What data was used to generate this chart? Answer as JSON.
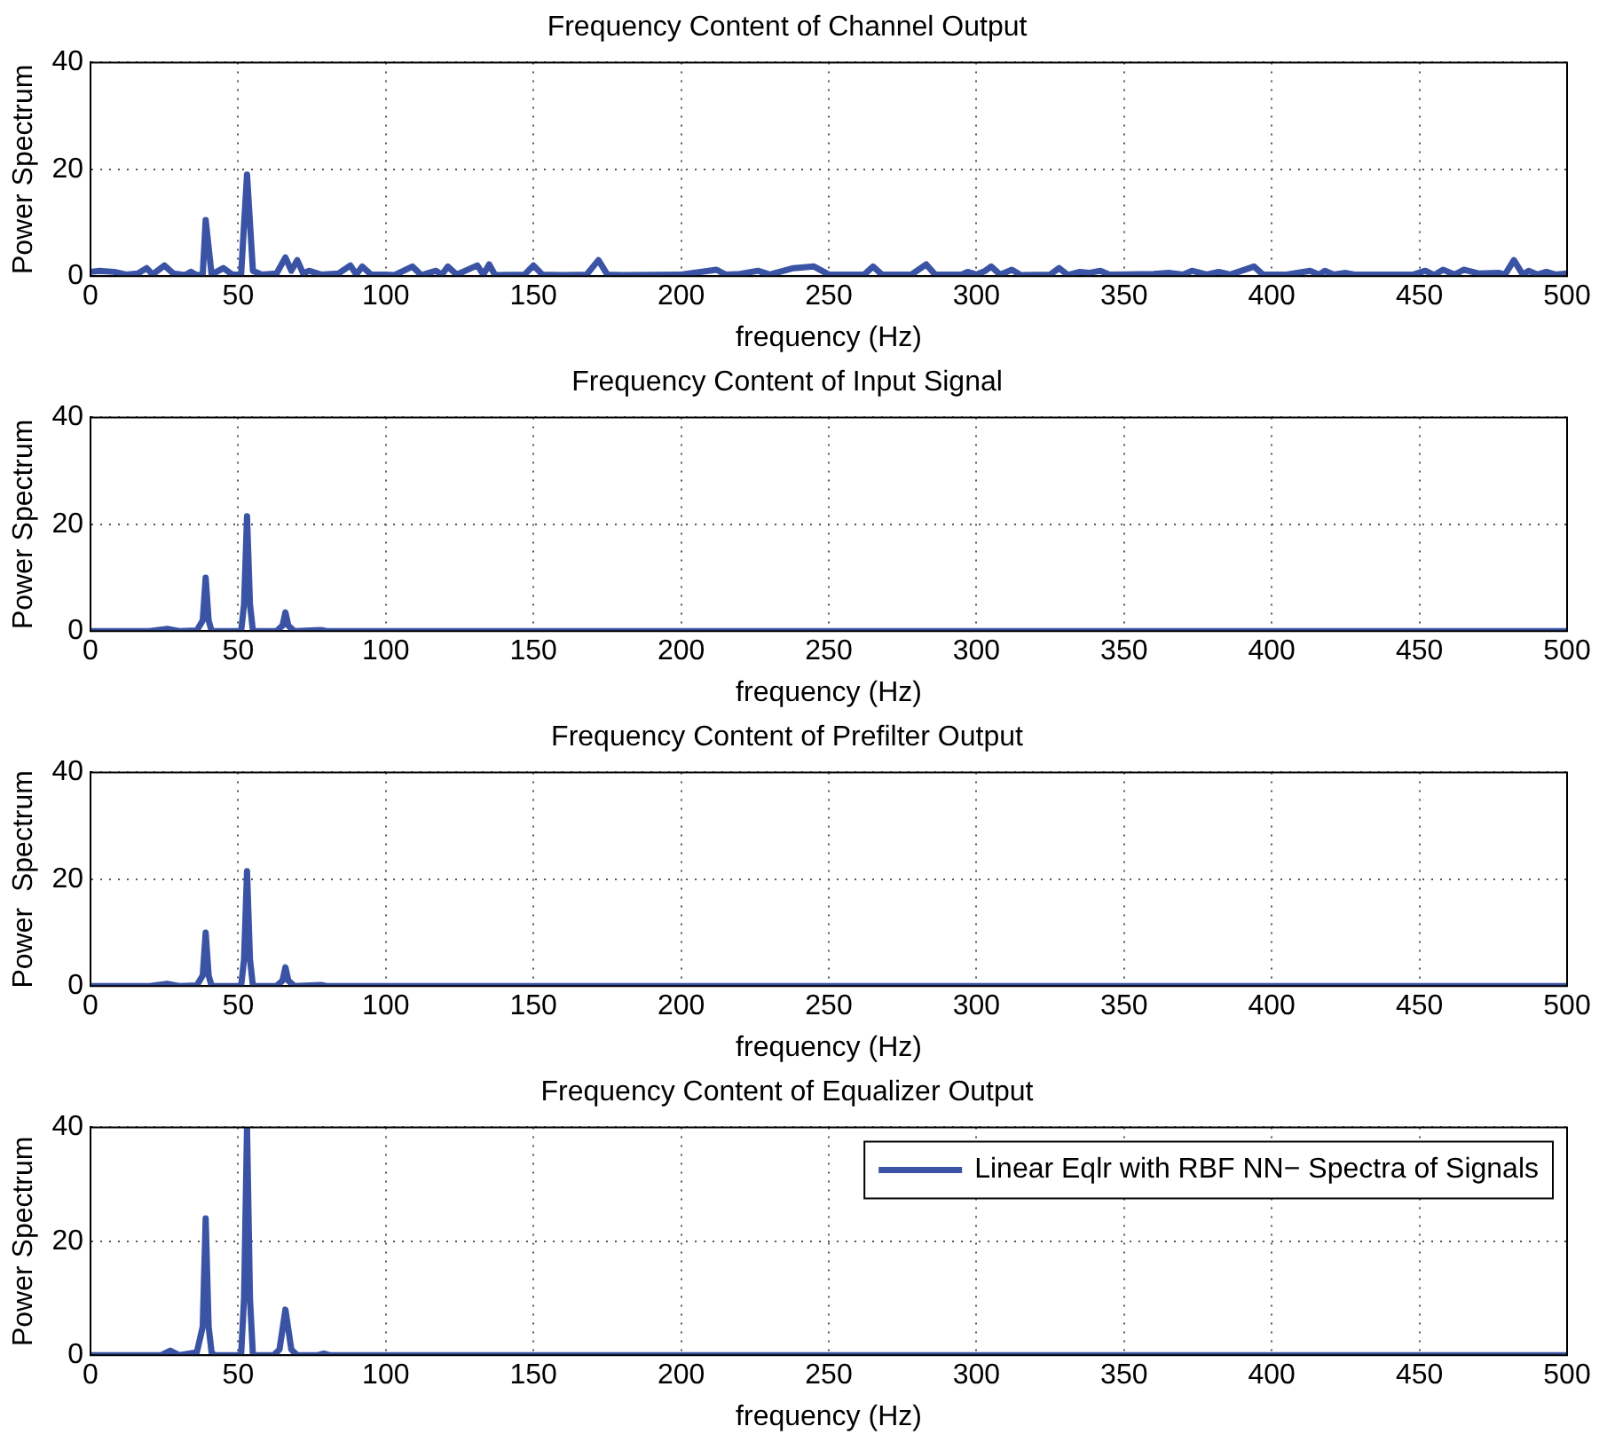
{
  "chart_data": [
    {
      "type": "line",
      "title": "Frequency Content of Channel Output",
      "xlabel": "frequency (Hz)",
      "ylabel": "Power Spectrum",
      "xlim": [
        0,
        500
      ],
      "xticks": [
        0,
        50,
        100,
        150,
        200,
        250,
        300,
        350,
        400,
        450,
        500
      ],
      "ylim": [
        0,
        40
      ],
      "yticks": [
        0,
        20,
        40
      ],
      "grid": true,
      "marker": "none",
      "line_style": "solid",
      "series": [
        {
          "color": "#3a53a4",
          "x": [
            0,
            3,
            8,
            12,
            16,
            19,
            21,
            25,
            28,
            32,
            34,
            36,
            38,
            39,
            41,
            45,
            48,
            51,
            53,
            55,
            58,
            63,
            66,
            68,
            70,
            72,
            74,
            78,
            84,
            88,
            90,
            92,
            95,
            100,
            103,
            109,
            112,
            117,
            119,
            121,
            124,
            131,
            133,
            135,
            137,
            147,
            150,
            153,
            160,
            168,
            172,
            175,
            180,
            200,
            212,
            215,
            220,
            226,
            230,
            238,
            245,
            250,
            262,
            265,
            268,
            278,
            283,
            286,
            295,
            297,
            300,
            303,
            305,
            308,
            312,
            315,
            325,
            328,
            331,
            335,
            338,
            342,
            345,
            360,
            365,
            370,
            373,
            378,
            382,
            386,
            394,
            397,
            405,
            413,
            416,
            418,
            421,
            425,
            428,
            440,
            448,
            452,
            455,
            458,
            462,
            465,
            470,
            477,
            479,
            482,
            485,
            487,
            490,
            493,
            496,
            500
          ],
          "values": [
            0.8,
            1,
            0.8,
            0.3,
            0.5,
            1.5,
            0.3,
            2,
            0.5,
            0.2,
            0.8,
            0.2,
            0.3,
            10.5,
            0.3,
            1.5,
            0.3,
            0.3,
            19,
            1,
            0.3,
            0.5,
            3.5,
            1,
            3,
            0.5,
            1,
            0.3,
            0.5,
            2,
            0.3,
            1.8,
            0.3,
            0.3,
            0.2,
            1.8,
            0.2,
            1,
            0.3,
            1.8,
            0.3,
            2,
            0.3,
            2.2,
            0.2,
            0.3,
            2,
            0.3,
            0.2,
            0.3,
            3,
            0.3,
            0.2,
            0.3,
            1.2,
            0.3,
            0.4,
            1,
            0.3,
            1.5,
            1.8,
            0.3,
            0.3,
            1.8,
            0.3,
            0.3,
            2.2,
            0.3,
            0.3,
            0.8,
            0.3,
            1,
            1.8,
            0.3,
            1.2,
            0.2,
            0.3,
            1.5,
            0.2,
            0.8,
            0.6,
            1,
            0.3,
            0.4,
            0.6,
            0.3,
            1,
            0.3,
            0.8,
            0.3,
            1.8,
            0.3,
            0.3,
            1,
            0.3,
            1,
            0.3,
            0.6,
            0.3,
            0.3,
            0.3,
            1,
            0.2,
            1.2,
            0.3,
            1.2,
            0.5,
            0.6,
            0.3,
            3,
            0.3,
            1,
            0.3,
            0.8,
            0.3,
            0.5
          ]
        }
      ]
    },
    {
      "type": "line",
      "title": "Frequency Content of Input Signal",
      "xlabel": "frequency (Hz)",
      "ylabel": "Power Spectrum",
      "xlim": [
        0,
        500
      ],
      "xticks": [
        0,
        50,
        100,
        150,
        200,
        250,
        300,
        350,
        400,
        450,
        500
      ],
      "ylim": [
        0,
        40
      ],
      "yticks": [
        0,
        20,
        40
      ],
      "grid": true,
      "marker": "none",
      "line_style": "solid",
      "series": [
        {
          "color": "#3a53a4",
          "x": [
            0,
            20,
            26,
            30,
            36,
            38,
            39,
            40,
            41,
            51,
            52,
            53,
            54,
            55,
            63,
            65,
            66,
            67,
            69,
            78,
            80,
            500
          ],
          "values": [
            0,
            0,
            0.4,
            0,
            0.1,
            2,
            10,
            2,
            0,
            0,
            5,
            21.5,
            5,
            0,
            0,
            1,
            3.5,
            1,
            0,
            0.2,
            0,
            0
          ]
        }
      ]
    },
    {
      "type": "line",
      "title": "Frequency Content of Prefilter Output",
      "xlabel": "frequency (Hz)",
      "ylabel": "Power  Spectrum",
      "xlim": [
        0,
        500
      ],
      "xticks": [
        0,
        50,
        100,
        150,
        200,
        250,
        300,
        350,
        400,
        450,
        500
      ],
      "ylim": [
        0,
        40
      ],
      "yticks": [
        0,
        20,
        40
      ],
      "grid": true,
      "marker": "none",
      "line_style": "solid",
      "series": [
        {
          "color": "#3a53a4",
          "x": [
            0,
            20,
            26,
            30,
            36,
            38,
            39,
            40,
            41,
            51,
            52,
            53,
            54,
            55,
            63,
            65,
            66,
            67,
            69,
            78,
            80,
            500
          ],
          "values": [
            0,
            0,
            0.4,
            0,
            0.1,
            2,
            10,
            2,
            0,
            0,
            5,
            21.5,
            5,
            0,
            0,
            1,
            3.5,
            1,
            0,
            0.2,
            0,
            0
          ]
        }
      ]
    },
    {
      "type": "line",
      "title": "Frequency Content of Equalizer Output",
      "xlabel": "frequency (Hz)",
      "ylabel": "Power Spectrum",
      "xlim": [
        0,
        500
      ],
      "xticks": [
        0,
        50,
        100,
        150,
        200,
        250,
        300,
        350,
        400,
        450,
        500
      ],
      "ylim": [
        0,
        40
      ],
      "yticks": [
        0,
        20,
        40
      ],
      "grid": true,
      "marker": "none",
      "line_style": "solid",
      "legend": "top right",
      "series": [
        {
          "name": "Linear Eqlr with RBF NN− Spectra of Signals",
          "color": "#3a53a4",
          "x": [
            0,
            24,
            27,
            30,
            36,
            38,
            39,
            40,
            41,
            42,
            51,
            52,
            53,
            54,
            55,
            62,
            64,
            66,
            68,
            70,
            77,
            79,
            81,
            500
          ],
          "values": [
            0,
            0,
            0.8,
            0,
            0.5,
            5,
            24,
            5,
            0.5,
            0,
            0,
            10,
            40,
            10,
            0,
            0,
            1,
            8,
            1,
            0,
            0,
            0.3,
            0,
            0
          ]
        }
      ]
    }
  ]
}
